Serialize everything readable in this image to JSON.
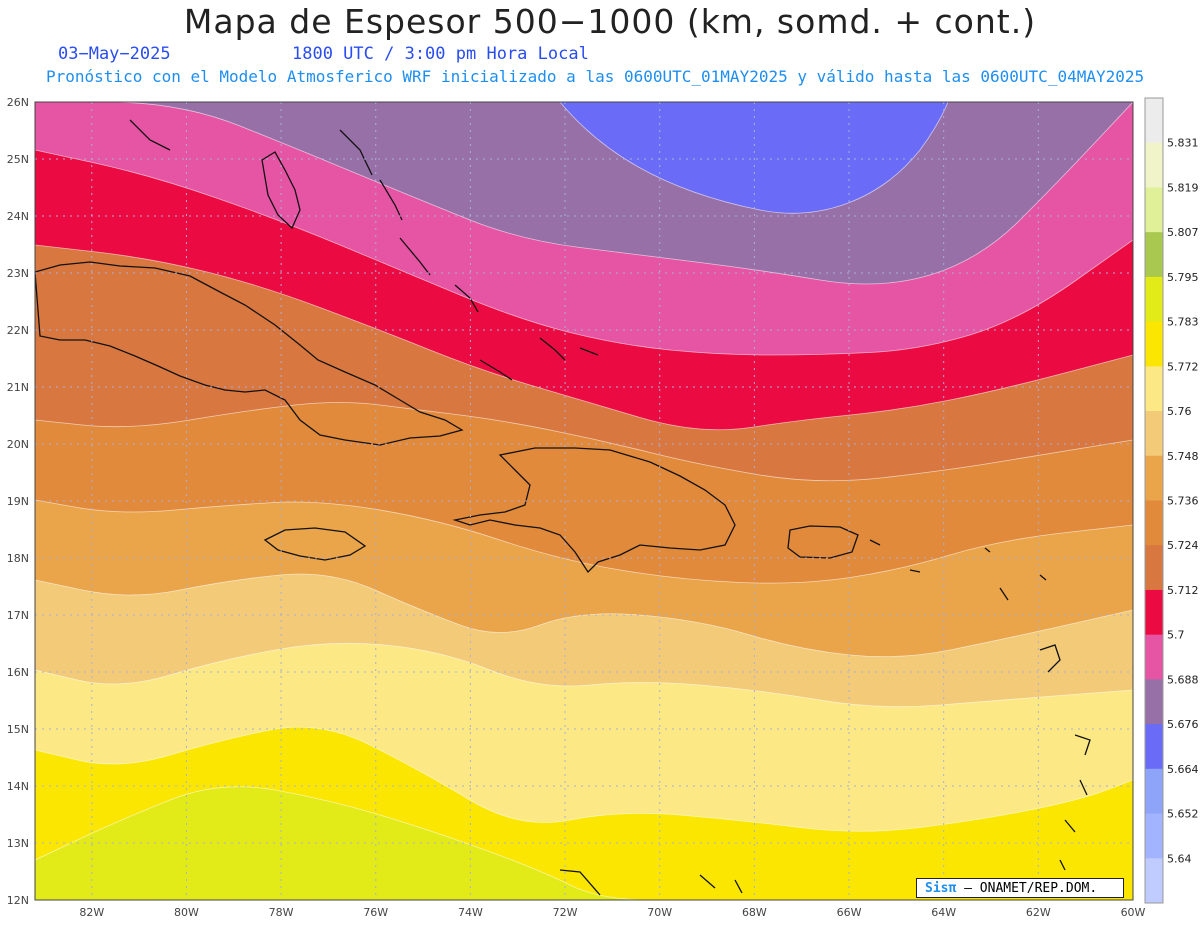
{
  "header": {
    "title": "Mapa de Espesor 500−1000 (km, somd. + cont.)",
    "date": "03−May−2025",
    "time": "1800 UTC / 3:00 pm Hora Local",
    "subtitle": "Pronóstico con el Modelo Atmosferico WRF inicializado a las 0600UTC_01MAY2025 y válido hasta las  0600UTC_04MAY2025"
  },
  "axes": {
    "lat_labels": [
      "26N",
      "25N",
      "24N",
      "23N",
      "22N",
      "21N",
      "20N",
      "19N",
      "18N",
      "17N",
      "16N",
      "15N",
      "14N",
      "13N",
      "12N"
    ],
    "lon_labels": [
      "82W",
      "80W",
      "78W",
      "76W",
      "74W",
      "72W",
      "70W",
      "68W",
      "66W",
      "64W",
      "62W",
      "60W"
    ]
  },
  "colorbar": {
    "labels": [
      "5.831",
      "5.819",
      "5.807",
      "5.795",
      "5.783",
      "5.772",
      "5.76",
      "5.748",
      "5.736",
      "5.724",
      "5.712",
      "5.7",
      "5.688",
      "5.676",
      "5.664",
      "5.652",
      "5.64"
    ],
    "colors": [
      "#ececec",
      "#f0f4c8",
      "#e0f098",
      "#a8c850",
      "#e2ea18",
      "#fae600",
      "#fce884",
      "#f2ca78",
      "#eaa44a",
      "#e28a3c",
      "#d87840",
      "#ec0a42",
      "#e654a4",
      "#9870a8",
      "#6a6cf8",
      "#8ea4f8",
      "#a2b4ff",
      "#c0ccff"
    ]
  },
  "map_bands": {
    "from_north": [
      "#9870a8",
      "#e654a4",
      "#ec0a42",
      "#d87840",
      "#e28a3c",
      "#eaa44a",
      "#f2ca78",
      "#fce884",
      "#fae600",
      "#e2ea18"
    ],
    "low_center_color": "#6a6cf8"
  },
  "credit": {
    "brand": "Sisπ",
    "text": "– ONAMET/REP.DOM."
  }
}
